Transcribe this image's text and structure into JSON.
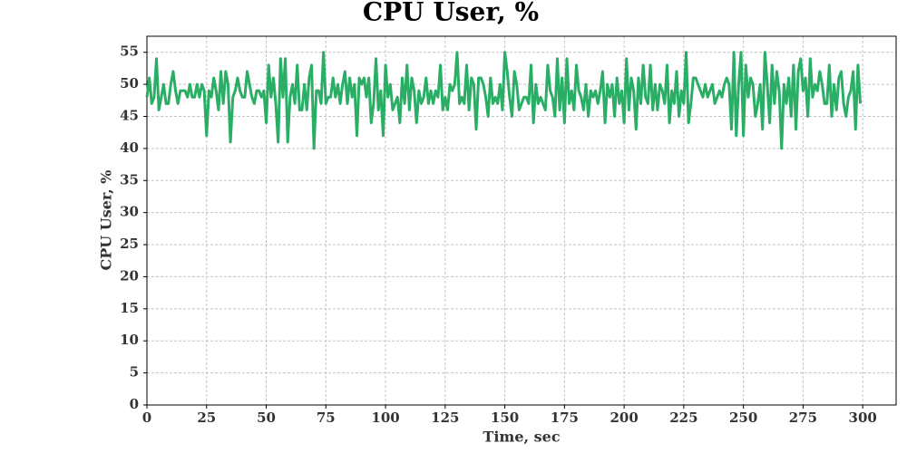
{
  "chart_data": {
    "type": "line",
    "title": "CPU User, %",
    "xlabel": "Time, sec",
    "ylabel": "CPU User, %",
    "x": [
      0,
      1,
      2,
      3,
      4,
      5,
      6,
      7,
      8,
      9,
      10,
      11,
      12,
      13,
      14,
      15,
      16,
      17,
      18,
      19,
      20,
      21,
      22,
      23,
      24,
      25,
      26,
      27,
      28,
      29,
      30,
      31,
      32,
      33,
      34,
      35,
      36,
      37,
      38,
      39,
      40,
      41,
      42,
      43,
      44,
      45,
      46,
      47,
      48,
      49,
      50,
      51,
      52,
      53,
      54,
      55,
      56,
      57,
      58,
      59,
      60,
      61,
      62,
      63,
      64,
      65,
      66,
      67,
      68,
      69,
      70,
      71,
      72,
      73,
      74,
      75,
      76,
      77,
      78,
      79,
      80,
      81,
      82,
      83,
      84,
      85,
      86,
      87,
      88,
      89,
      90,
      91,
      92,
      93,
      94,
      95,
      96,
      97,
      98,
      99,
      100,
      101,
      102,
      103,
      104,
      105,
      106,
      107,
      108,
      109,
      110,
      111,
      112,
      113,
      114,
      115,
      116,
      117,
      118,
      119,
      120,
      121,
      122,
      123,
      124,
      125,
      126,
      127,
      128,
      129,
      130,
      131,
      132,
      133,
      134,
      135,
      136,
      137,
      138,
      139,
      140,
      141,
      142,
      143,
      144,
      145,
      146,
      147,
      148,
      149,
      150,
      151,
      152,
      153,
      154,
      155,
      156,
      157,
      158,
      159,
      160,
      161,
      162,
      163,
      164,
      165,
      166,
      167,
      168,
      169,
      170,
      171,
      172,
      173,
      174,
      175,
      176,
      177,
      178,
      179,
      180,
      181,
      182,
      183,
      184,
      185,
      186,
      187,
      188,
      189,
      190,
      191,
      192,
      193,
      194,
      195,
      196,
      197,
      198,
      199,
      200,
      201,
      202,
      203,
      204,
      205,
      206,
      207,
      208,
      209,
      210,
      211,
      212,
      213,
      214,
      215,
      216,
      217,
      218,
      219,
      220,
      221,
      222,
      223,
      224,
      225,
      226,
      227,
      228,
      229,
      230,
      231,
      232,
      233,
      234,
      235,
      236,
      237,
      238,
      239,
      240,
      241,
      242,
      243,
      244,
      245,
      246,
      247,
      248,
      249,
      250,
      251,
      252,
      253,
      254,
      255,
      256,
      257,
      258,
      259,
      260,
      261,
      262,
      263,
      264,
      265,
      266,
      267,
      268,
      269,
      270,
      271,
      272,
      273,
      274,
      275,
      276,
      277,
      278,
      279,
      280,
      281,
      282,
      283,
      284,
      285,
      286,
      287,
      288,
      289,
      290,
      291,
      292,
      293,
      294,
      295,
      296,
      297,
      298,
      299
    ],
    "series": [
      {
        "name": "CPU User",
        "color": "#2aae66",
        "values": [
          48,
          51,
          47,
          48,
          54,
          46,
          48,
          50,
          47,
          47,
          50,
          52,
          49,
          47,
          49,
          49,
          49,
          48,
          50,
          48,
          48,
          50,
          48,
          50,
          49,
          42,
          49,
          48,
          51,
          49,
          46,
          52,
          47,
          52,
          50,
          41,
          48,
          49,
          51,
          49,
          48,
          48,
          52,
          50,
          48,
          47,
          49,
          49,
          48,
          49,
          44,
          53,
          48,
          51,
          47,
          41,
          54,
          48,
          54,
          41,
          48,
          50,
          47,
          53,
          46,
          46,
          50,
          46,
          51,
          53,
          40,
          49,
          49,
          47,
          55,
          47,
          48,
          48,
          51,
          48,
          50,
          47,
          50,
          52,
          47,
          51,
          48,
          50,
          42,
          51,
          50,
          51,
          48,
          51,
          44,
          47,
          54,
          46,
          49,
          42,
          53,
          48,
          50,
          46,
          47,
          48,
          44,
          51,
          47,
          53,
          46,
          51,
          49,
          44,
          49,
          47,
          48,
          51,
          47,
          49,
          47,
          49,
          48,
          53,
          46,
          48,
          46,
          50,
          49,
          50,
          55,
          47,
          48,
          47,
          53,
          46,
          51,
          50,
          43,
          51,
          51,
          50,
          48,
          45,
          51,
          47,
          48,
          47,
          50,
          46,
          55,
          52,
          48,
          45,
          52,
          50,
          46,
          47,
          48,
          48,
          47,
          53,
          44,
          50,
          47,
          48,
          47,
          46,
          53,
          49,
          48,
          45,
          54,
          46,
          51,
          44,
          54,
          47,
          49,
          46,
          53,
          49,
          48,
          46,
          50,
          45,
          49,
          48,
          49,
          47,
          49,
          52,
          44,
          50,
          48,
          50,
          45,
          51,
          47,
          49,
          44,
          54,
          46,
          51,
          49,
          43,
          51,
          47,
          53,
          48,
          47,
          53,
          46,
          50,
          46,
          50,
          49,
          47,
          53,
          44,
          49,
          47,
          52,
          45,
          49,
          47,
          55,
          44,
          47,
          51,
          51,
          50,
          49,
          48,
          50,
          48,
          49,
          50,
          47,
          48,
          49,
          48,
          50,
          51,
          50,
          43,
          55,
          42,
          50,
          55,
          42,
          53,
          48,
          51,
          50,
          45,
          47,
          50,
          43,
          55,
          50,
          44,
          53,
          47,
          52,
          49,
          40,
          50,
          47,
          51,
          45,
          53,
          43,
          52,
          54,
          49,
          51,
          45,
          54,
          48,
          50,
          49,
          52,
          50,
          47,
          47,
          53,
          45,
          50,
          46,
          51,
          52,
          47,
          45,
          48,
          49,
          52,
          43,
          53,
          47
        ]
      }
    ],
    "xlim": [
      0,
      314
    ],
    "ylim": [
      0,
      57.5
    ],
    "xticks": [
      0,
      25,
      50,
      75,
      100,
      125,
      150,
      175,
      200,
      225,
      250,
      275,
      300
    ],
    "yticks": [
      0,
      5,
      10,
      15,
      20,
      25,
      30,
      35,
      40,
      45,
      50,
      55
    ],
    "grid": true
  }
}
